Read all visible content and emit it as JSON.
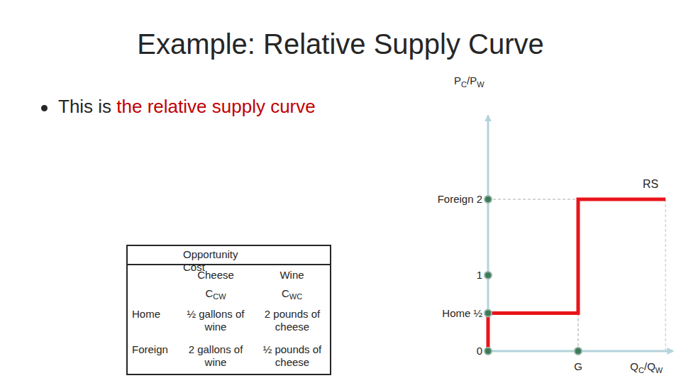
{
  "title": "Example: Relative Supply Curve",
  "bullet": {
    "text": "This is ",
    "highlight": "the relative supply curve"
  },
  "table": {
    "title": "Opportunity Cost",
    "columns": [
      {
        "name": "Cheese",
        "symbol": [
          "C",
          "CW"
        ]
      },
      {
        "name": "Wine",
        "symbol": [
          "C",
          "WC"
        ]
      }
    ],
    "rows": [
      {
        "label": "Home",
        "cells": [
          "½ gallons of wine",
          "2 pounds of cheese"
        ]
      },
      {
        "label": "Foreign",
        "cells": [
          "2 gallons of wine",
          "½ pounds of cheese"
        ]
      }
    ]
  },
  "chart_data": {
    "type": "line",
    "y_label": [
      "P",
      "C",
      "/P",
      "W"
    ],
    "x_label": [
      "Q",
      "C",
      "/Q",
      "W"
    ],
    "xlim": [
      0,
      2.05
    ],
    "ylim": [
      0,
      3.1
    ],
    "xticks": [
      {
        "value": 1,
        "label": "G"
      }
    ],
    "yticks": [
      0,
      {
        "value": 0.5,
        "label": "Home ½"
      },
      1,
      {
        "value": 2,
        "label": "Foreign 2"
      }
    ],
    "grid": false,
    "series": [
      {
        "name": "RS",
        "color": "#e8141a",
        "x": [
          0,
          0,
          1,
          1,
          1.97
        ],
        "values": [
          0,
          0.5,
          0.5,
          2,
          2
        ]
      }
    ]
  }
}
